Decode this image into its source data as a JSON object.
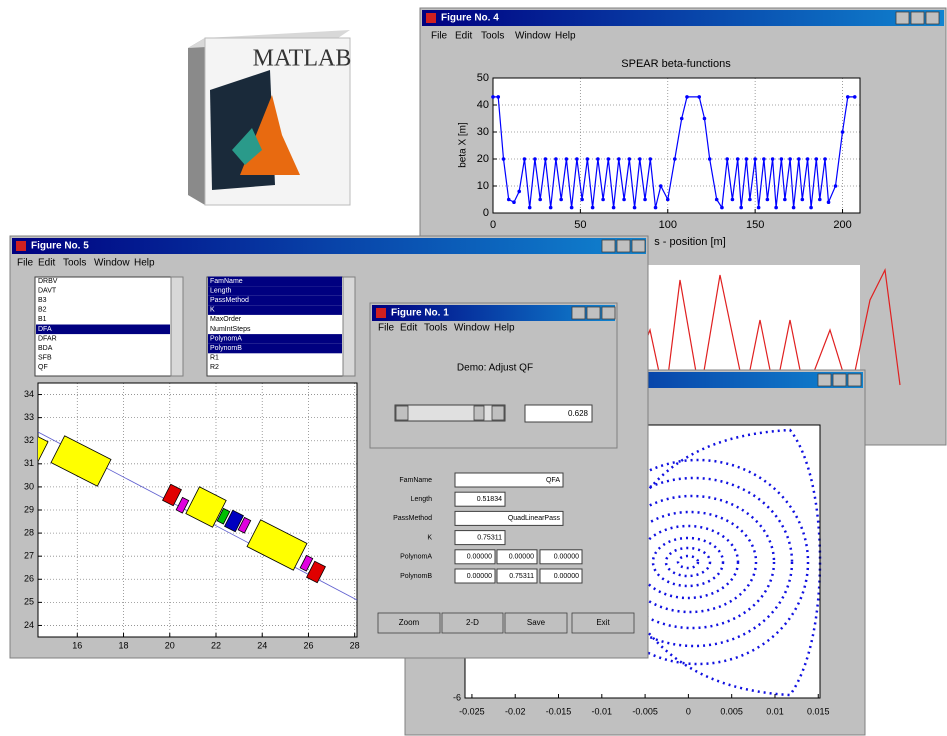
{
  "logo": "MATLAB",
  "figure4": {
    "title": "Figure No. 4",
    "menu": [
      "File",
      "Edit",
      "Tools",
      "Window",
      "Help"
    ],
    "chart_data": {
      "type": "line",
      "title": "SPEAR beta-functions",
      "xlabel": "s - position [m]",
      "ylabel": "beta X [m]",
      "x": [
        0,
        3,
        6,
        9,
        12,
        15,
        18,
        21,
        24,
        27,
        30,
        33,
        36,
        39,
        42,
        45,
        48,
        51,
        54,
        57,
        60,
        63,
        66,
        69,
        72,
        75,
        78,
        81,
        84,
        87,
        90,
        93,
        96,
        100,
        104,
        108,
        111,
        118,
        121,
        124,
        128,
        131,
        134,
        137,
        140,
        142,
        145,
        147,
        150,
        152,
        155,
        157,
        160,
        162,
        165,
        167,
        170,
        172,
        175,
        177,
        180,
        182,
        185,
        187,
        190,
        192,
        196,
        200,
        203,
        207
      ],
      "values": [
        43,
        43,
        20,
        5,
        4,
        8,
        20,
        2,
        20,
        5,
        20,
        2,
        20,
        5,
        20,
        2,
        20,
        5,
        20,
        2,
        20,
        5,
        20,
        2,
        20,
        5,
        20,
        2,
        20,
        5,
        20,
        2,
        10,
        5,
        20,
        35,
        43,
        43,
        35,
        20,
        5,
        2,
        20,
        5,
        20,
        2,
        20,
        5,
        20,
        2,
        20,
        5,
        20,
        2,
        20,
        5,
        20,
        2,
        20,
        5,
        20,
        2,
        20,
        5,
        20,
        4,
        10,
        30,
        43,
        43
      ],
      "color": "#0000ff",
      "xlim": [
        0,
        210
      ],
      "xticks": [
        0,
        50,
        100,
        150,
        200
      ],
      "ylim": [
        0,
        50
      ],
      "yticks": [
        0,
        10,
        20,
        30,
        40,
        50
      ],
      "grid": true
    }
  },
  "poincare": {
    "chart_data": {
      "type": "scatter",
      "xlim": [
        -0.0258,
        0.0152
      ],
      "xticks": [
        -0.025,
        -0.02,
        -0.015,
        -0.01,
        -0.005,
        0,
        0.005,
        0.01,
        0.015
      ],
      "ylim": [
        -6,
        6
      ],
      "yticks": [
        -6
      ],
      "grid": false
    }
  },
  "figure5": {
    "title": "Figure No. 5",
    "menu": [
      "File",
      "Edit",
      "Tools",
      "Window",
      "Help"
    ],
    "list1": {
      "items": [
        "DRBV",
        "DAVT",
        "B3",
        "B2",
        "B1",
        "DFA",
        "DFAR",
        "BDA",
        "SFB",
        "QF"
      ],
      "selected": [
        5
      ]
    },
    "list2": {
      "items": [
        "FamName",
        "Length",
        "PassMethod",
        "K",
        "MaxOrder",
        "NumIntSteps",
        "PolynomA",
        "PolynomB",
        "R1",
        "R2"
      ],
      "selected": [
        0,
        1,
        2,
        3,
        6,
        7
      ]
    },
    "chart_data": {
      "type": "lattice",
      "xlim": [
        14.3,
        28.1
      ],
      "xticks": [
        16,
        18,
        20,
        22,
        24,
        26,
        28
      ],
      "ylim": [
        23.5,
        34.5
      ],
      "yticks": [
        24,
        25,
        26,
        27,
        28,
        29,
        30,
        31,
        32,
        33,
        34
      ],
      "grid": true
    },
    "fields": [
      {
        "label": "FamName",
        "values": [
          "QFA"
        ]
      },
      {
        "label": "Length",
        "values": [
          "0.51834"
        ]
      },
      {
        "label": "PassMethod",
        "values": [
          "QuadLinearPass"
        ]
      },
      {
        "label": "K",
        "values": [
          "0.75311"
        ]
      },
      {
        "label": "PolynomA",
        "values": [
          "0.00000",
          "0.00000",
          "0.00000"
        ]
      },
      {
        "label": "PolynomB",
        "values": [
          "0.00000",
          "0.75311",
          "0.00000"
        ]
      }
    ],
    "buttons": [
      "Zoom",
      "2-D",
      "Save",
      "Exit"
    ]
  },
  "figure1": {
    "title": "Figure No. 1",
    "menu": [
      "File",
      "Edit",
      "Tools",
      "Window",
      "Help"
    ],
    "text": "Demo: Adjust QF",
    "slider_value": "0.628"
  }
}
